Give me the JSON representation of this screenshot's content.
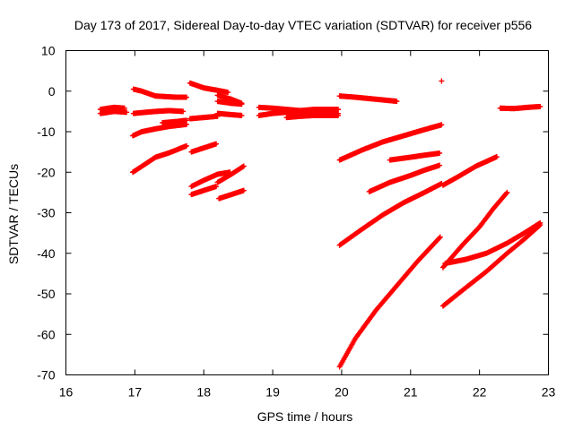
{
  "chart_data": {
    "type": "scatter",
    "title": "Day 173 of 2017, Sidereal Day-to-day VTEC variation (SDTVAR) for receiver p556",
    "xlabel": "GPS time / hours",
    "ylabel": "SDTVAR / TECUs",
    "xlim": [
      16,
      23
    ],
    "ylim": [
      -70,
      10
    ],
    "xticks": [
      "16",
      "17",
      "18",
      "19",
      "20",
      "21",
      "22",
      "23"
    ],
    "yticks": [
      "10",
      "0",
      "-10",
      "-20",
      "-30",
      "-40",
      "-50",
      "-60",
      "-70"
    ],
    "grid": false,
    "legend": "none",
    "marker": "plus",
    "color": "#ff0000",
    "tracks": [
      {
        "x": [
          16.5,
          16.7,
          16.85
        ],
        "y": [
          -4.5,
          -4.0,
          -4.2
        ]
      },
      {
        "x": [
          16.5,
          16.7,
          16.88
        ],
        "y": [
          -5.5,
          -5.0,
          -5.2
        ]
      },
      {
        "x": [
          16.98,
          17.1,
          17.3,
          17.6,
          17.75
        ],
        "y": [
          0.5,
          0.0,
          -1.2,
          -1.5,
          -1.5
        ]
      },
      {
        "x": [
          16.98,
          17.1,
          17.3,
          17.5,
          17.7
        ],
        "y": [
          -5.5,
          -5.3,
          -5.0,
          -4.8,
          -5.0
        ]
      },
      {
        "x": [
          17.4,
          17.6,
          17.75
        ],
        "y": [
          -7.8,
          -7.5,
          -7.2
        ]
      },
      {
        "x": [
          16.97,
          17.1,
          17.3,
          17.5,
          17.75
        ],
        "y": [
          -11.0,
          -10.0,
          -9.3,
          -8.7,
          -8.2
        ]
      },
      {
        "x": [
          16.97,
          17.15,
          17.3,
          17.5,
          17.75
        ],
        "y": [
          -20.0,
          -18.0,
          -16.3,
          -15.2,
          -13.5
        ]
      },
      {
        "x": [
          17.8,
          18.0,
          18.2,
          18.35
        ],
        "y": [
          2.0,
          0.8,
          0.2,
          -0.3
        ]
      },
      {
        "x": [
          17.8,
          18.0,
          18.2
        ],
        "y": [
          -6.8,
          -6.5,
          -6.2
        ]
      },
      {
        "x": [
          18.2,
          18.4,
          18.55
        ],
        "y": [
          -5.5,
          -5.8,
          -6.0
        ]
      },
      {
        "x": [
          18.2,
          18.4,
          18.55
        ],
        "y": [
          -1.0,
          -2.0,
          -3.0
        ]
      },
      {
        "x": [
          18.2,
          18.4,
          18.55
        ],
        "y": [
          -2.5,
          -3.0,
          -3.2
        ]
      },
      {
        "x": [
          17.82,
          18.0,
          18.18
        ],
        "y": [
          -15.0,
          -14.0,
          -13.0
        ]
      },
      {
        "x": [
          17.82,
          18.0,
          18.2,
          18.38
        ],
        "y": [
          -23.5,
          -22.0,
          -20.5,
          -20.0
        ]
      },
      {
        "x": [
          18.2,
          18.4,
          18.58
        ],
        "y": [
          -22.5,
          -20.5,
          -18.5
        ]
      },
      {
        "x": [
          17.82,
          18.0,
          18.18
        ],
        "y": [
          -25.5,
          -24.5,
          -23.5
        ]
      },
      {
        "x": [
          18.22,
          18.4,
          18.58
        ],
        "y": [
          -26.5,
          -25.5,
          -24.5
        ]
      },
      {
        "x": [
          18.8,
          19.0,
          19.2,
          19.4,
          19.6,
          19.95
        ],
        "y": [
          -4.0,
          -4.2,
          -4.5,
          -4.8,
          -4.5,
          -4.5
        ]
      },
      {
        "x": [
          18.8,
          19.0,
          19.2,
          19.4,
          19.6,
          19.95
        ],
        "y": [
          -6.0,
          -5.5,
          -5.2,
          -5.5,
          -5.5,
          -5.5
        ]
      },
      {
        "x": [
          19.2,
          19.4,
          19.6,
          19.95
        ],
        "y": [
          -6.5,
          -6.2,
          -6.0,
          -6.0
        ]
      },
      {
        "x": [
          19.97,
          20.2,
          20.5,
          20.8
        ],
        "y": [
          -1.2,
          -1.5,
          -2.0,
          -2.5
        ]
      },
      {
        "x": [
          19.97,
          20.3,
          20.6,
          20.9,
          21.2,
          21.45
        ],
        "y": [
          -17.0,
          -14.5,
          -12.5,
          -11.0,
          -9.5,
          -8.3
        ]
      },
      {
        "x": [
          20.7,
          21.0,
          21.2,
          21.42
        ],
        "y": [
          -17.0,
          -16.3,
          -15.8,
          -15.3
        ]
      },
      {
        "x": [
          20.4,
          20.7,
          21.0,
          21.2,
          21.42
        ],
        "y": [
          -24.8,
          -22.5,
          -20.8,
          -19.5,
          -18.3
        ]
      },
      {
        "x": [
          19.97,
          20.3,
          20.6,
          20.9,
          21.2,
          21.45
        ],
        "y": [
          -38.0,
          -34.0,
          -30.5,
          -27.5,
          -25.0,
          -22.8
        ]
      },
      {
        "x": [
          19.97,
          20.2,
          20.5,
          20.8,
          21.1,
          21.43
        ],
        "y": [
          -68.0,
          -61.0,
          -54.0,
          -48.0,
          -42.0,
          -36.0
        ]
      },
      {
        "x": [
          21.45
        ],
        "y": [
          2.5
        ]
      },
      {
        "x": [
          21.47,
          21.7,
          21.95,
          22.25
        ],
        "y": [
          -23.2,
          -21.0,
          -18.5,
          -16.2
        ]
      },
      {
        "x": [
          21.47,
          21.75,
          22.0,
          22.2,
          22.4
        ],
        "y": [
          -43.5,
          -38.0,
          -33.5,
          -29.0,
          -25.0
        ]
      },
      {
        "x": [
          21.5,
          21.8,
          22.1,
          22.4,
          22.65,
          22.88
        ],
        "y": [
          -42.5,
          -41.5,
          -40.0,
          -37.5,
          -35.0,
          -32.5
        ]
      },
      {
        "x": [
          21.47,
          21.8,
          22.1,
          22.4,
          22.65,
          22.88
        ],
        "y": [
          -53.0,
          -48.5,
          -44.5,
          -40.0,
          -36.5,
          -33.0
        ]
      },
      {
        "x": [
          22.3,
          22.5,
          22.7,
          22.88
        ],
        "y": [
          -4.2,
          -4.3,
          -4.0,
          -3.8
        ]
      }
    ]
  }
}
